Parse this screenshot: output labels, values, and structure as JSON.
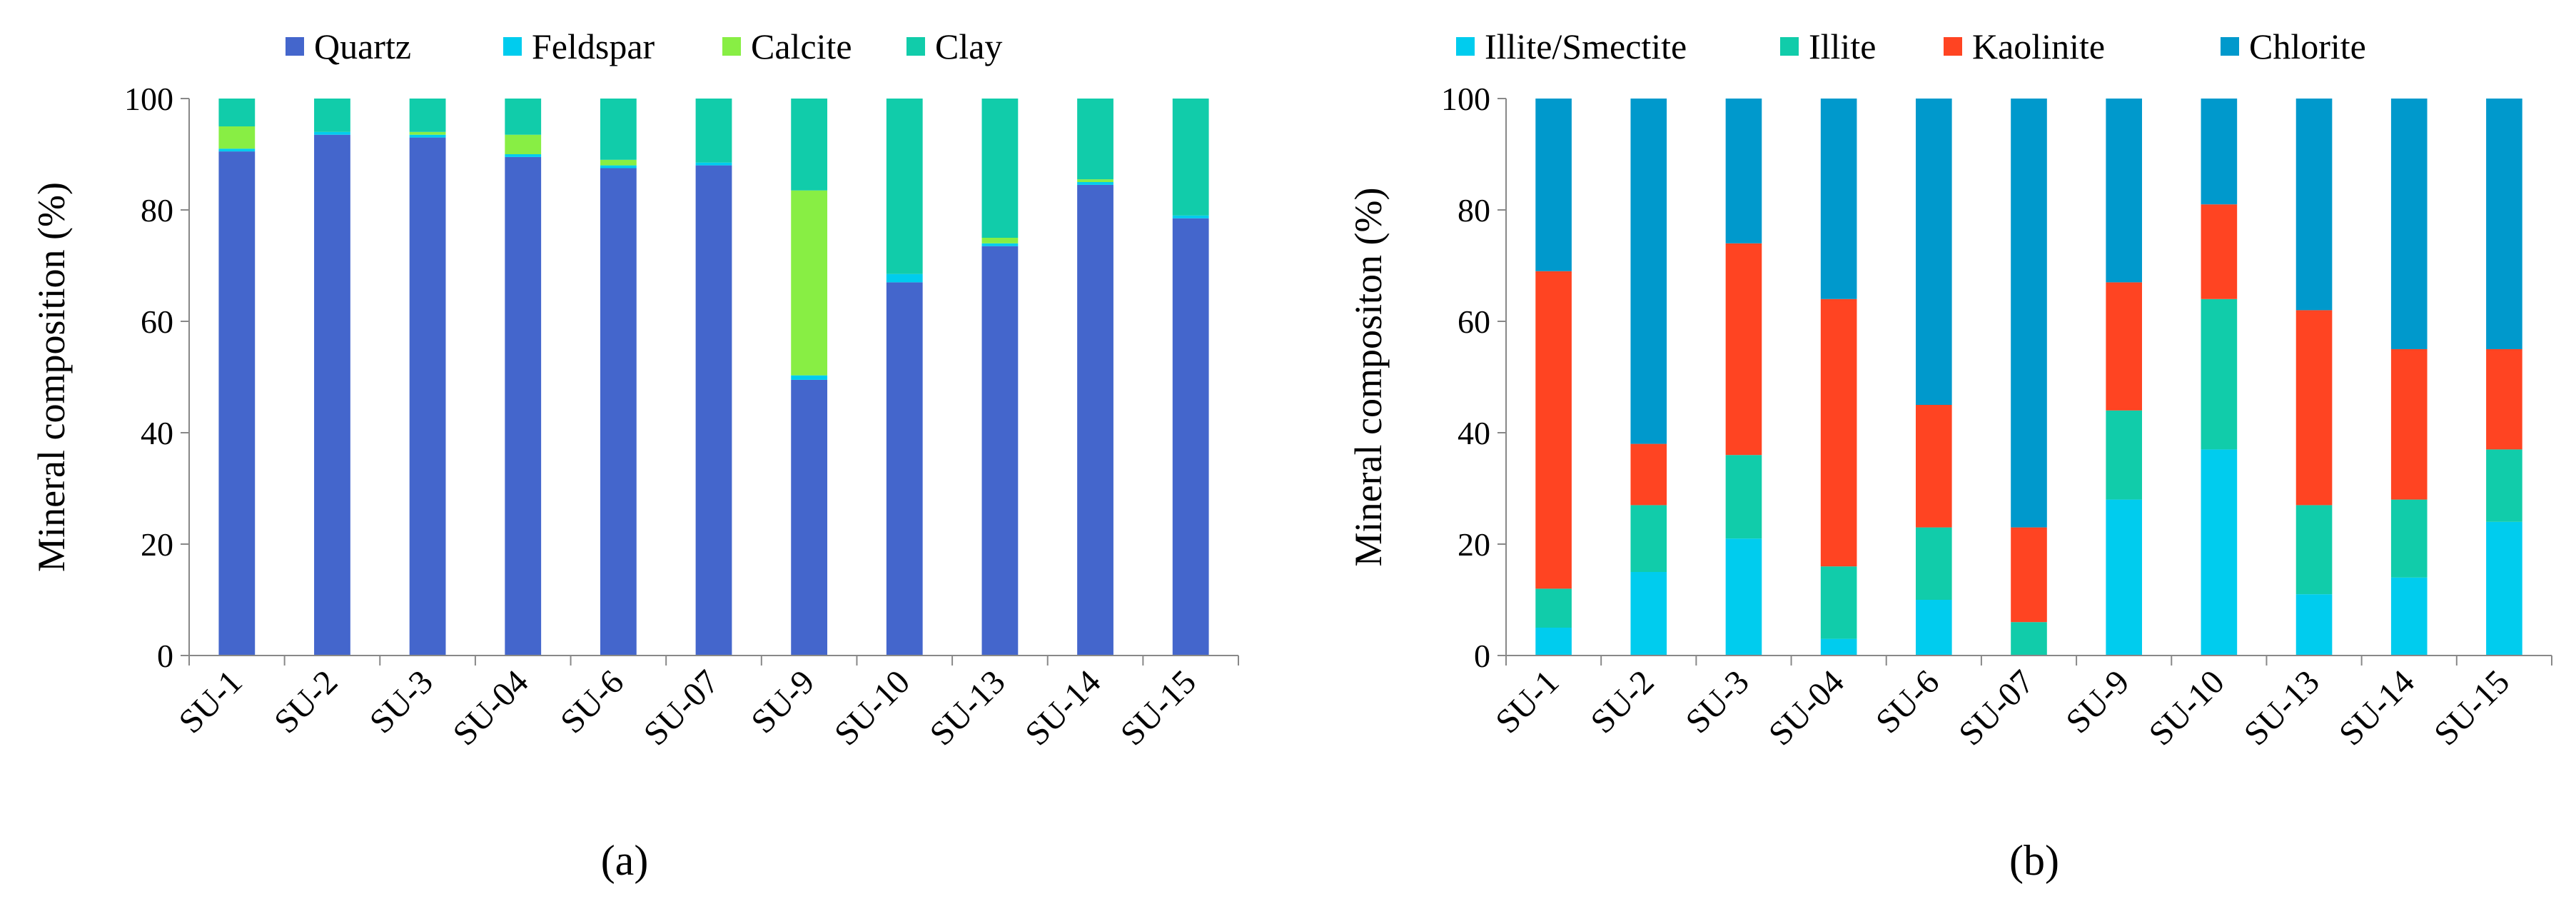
{
  "chart_data": [
    {
      "type": "bar",
      "stacked": true,
      "caption": "(a)",
      "title": "",
      "xlabel": "",
      "ylabel": "Mineral composition (%)",
      "ylim": [
        0,
        100
      ],
      "yticks": [
        0,
        20,
        40,
        60,
        80,
        100
      ],
      "legend_position": "top",
      "categories": [
        "SU-1",
        "SU-2",
        "SU-3",
        "SU-04",
        "SU-6",
        "SU-07",
        "SU-9",
        "SU-10",
        "SU-13",
        "SU-14",
        "SU-15"
      ],
      "series": [
        {
          "name": "Quartz",
          "color": "#4466cc",
          "values": [
            90.5,
            93.5,
            93.0,
            89.5,
            87.5,
            88.0,
            49.5,
            67.0,
            73.5,
            84.5,
            78.5
          ]
        },
        {
          "name": "Feldspar",
          "color": "#00ccee",
          "values": [
            0.5,
            0.5,
            0.5,
            0.5,
            0.5,
            0.5,
            0.8,
            1.5,
            0.5,
            0.5,
            0.5
          ]
        },
        {
          "name": "Calcite",
          "color": "#88ee44",
          "values": [
            4.0,
            0.0,
            0.5,
            3.5,
            1.0,
            0.0,
            33.2,
            0.0,
            1.0,
            0.5,
            0.0
          ]
        },
        {
          "name": "Clay",
          "color": "#11ccaa",
          "values": [
            5.0,
            6.0,
            6.0,
            6.5,
            11.0,
            11.5,
            16.5,
            31.5,
            25.0,
            14.5,
            21.0
          ]
        }
      ]
    },
    {
      "type": "bar",
      "stacked": true,
      "caption": "(b)",
      "title": "",
      "xlabel": "",
      "ylabel": "Mineral compositon (%)",
      "ylim": [
        0,
        100
      ],
      "yticks": [
        0,
        20,
        40,
        60,
        80,
        100
      ],
      "legend_position": "top",
      "categories": [
        "SU-1",
        "SU-2",
        "SU-3",
        "SU-04",
        "SU-6",
        "SU-07",
        "SU-9",
        "SU-10",
        "SU-13",
        "SU-14",
        "SU-15"
      ],
      "series": [
        {
          "name": "Illite/Smectite",
          "color": "#00ccee",
          "values": [
            5,
            15,
            21,
            3,
            10,
            0,
            28,
            37,
            11,
            14,
            24
          ]
        },
        {
          "name": "Illite",
          "color": "#11ccaa",
          "values": [
            7,
            12,
            15,
            13,
            13,
            6,
            16,
            27,
            16,
            14,
            13
          ]
        },
        {
          "name": "Kaolinite",
          "color": "#ff4422",
          "values": [
            57,
            11,
            38,
            48,
            22,
            17,
            23,
            17,
            35,
            27,
            18
          ]
        },
        {
          "name": "Chlorite",
          "color": "#0099cc",
          "values": [
            31,
            62,
            26,
            36,
            55,
            77,
            33,
            19,
            38,
            45,
            45
          ]
        }
      ]
    }
  ]
}
